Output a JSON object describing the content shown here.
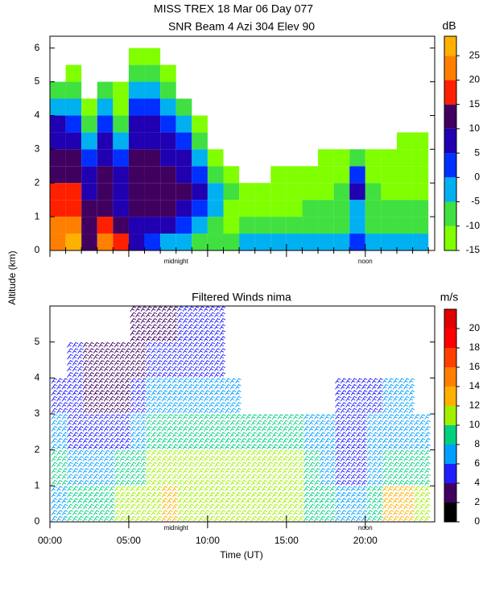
{
  "header": {
    "title": "MISS TREX  18 Mar 06 Day 077",
    "ylabel": "Altitude (km)"
  },
  "chart_data": [
    {
      "type": "heatmap",
      "title": "SNR Beam 4 Azi 304 Elev 90",
      "xlim": [
        0,
        24.4
      ],
      "ylim": [
        0,
        6.35
      ],
      "xticks": [
        0,
        1,
        2,
        3,
        4,
        5,
        6,
        7,
        8,
        9,
        10,
        11,
        12,
        13,
        14,
        15,
        16,
        17,
        18,
        19,
        20,
        21,
        22,
        23,
        24
      ],
      "yticks": [
        0,
        1,
        2,
        3,
        4,
        5,
        6
      ],
      "annotations": [
        {
          "text": "midnight",
          "x": 8
        },
        {
          "text": "noon",
          "x": 20
        }
      ],
      "xbins": [
        0,
        1,
        2,
        3,
        4,
        5,
        6,
        7,
        8,
        9,
        10,
        11,
        12,
        13,
        14,
        15,
        16,
        17,
        18,
        19,
        20,
        21,
        22,
        23,
        24
      ],
      "ybins": [
        0,
        0.5,
        1,
        1.5,
        2,
        2.5,
        3,
        3.5,
        4,
        4.5,
        5,
        5.5,
        6
      ],
      "values": [
        [
          20,
          22,
          15,
          15,
          12,
          10,
          8,
          5,
          -5,
          -10,
          null,
          null
        ],
        [
          25,
          20,
          18,
          15,
          12,
          10,
          5,
          0,
          -5,
          -10,
          -12,
          null
        ],
        [
          10,
          12,
          10,
          8,
          5,
          0,
          -5,
          -10,
          -12,
          null,
          null,
          null
        ],
        [
          20,
          15,
          12,
          12,
          10,
          8,
          5,
          0,
          -5,
          -10,
          null,
          null
        ],
        [
          15,
          10,
          5,
          5,
          5,
          0,
          -5,
          -10,
          -12,
          -12,
          null,
          null
        ],
        [
          5,
          8,
          10,
          10,
          10,
          10,
          8,
          5,
          0,
          -5,
          -10,
          -12
        ],
        [
          0,
          5,
          10,
          12,
          10,
          10,
          8,
          5,
          0,
          -5,
          -8,
          -12
        ],
        [
          -5,
          5,
          10,
          12,
          10,
          8,
          5,
          0,
          -5,
          -10,
          -12,
          null
        ],
        [
          -5,
          0,
          8,
          10,
          8,
          5,
          0,
          -5,
          -10,
          null,
          null,
          null
        ],
        [
          -10,
          -5,
          0,
          5,
          0,
          -5,
          -10,
          -12,
          null,
          null,
          null,
          null
        ],
        [
          -10,
          -10,
          -5,
          -5,
          -10,
          -12,
          null,
          null,
          null,
          null,
          null,
          null
        ],
        [
          -10,
          -12,
          -12,
          -10,
          -12,
          null,
          null,
          null,
          null,
          null,
          null,
          null
        ],
        [
          -5,
          -10,
          -12,
          -12,
          null,
          null,
          null,
          null,
          null,
          null,
          null,
          null
        ],
        [
          -5,
          -10,
          -12,
          -12,
          null,
          null,
          null,
          null,
          null,
          null,
          null,
          null
        ],
        [
          -5,
          -10,
          -12,
          -12,
          -12,
          null,
          null,
          null,
          null,
          null,
          null,
          null
        ],
        [
          -5,
          -10,
          -12,
          -12,
          -12,
          null,
          null,
          null,
          null,
          null,
          null,
          null
        ],
        [
          -5,
          -10,
          -10,
          -12,
          -12,
          null,
          null,
          null,
          null,
          null,
          null,
          null
        ],
        [
          -5,
          -10,
          -10,
          -12,
          -12,
          -12,
          null,
          null,
          null,
          null,
          null,
          null
        ],
        [
          -5,
          -8,
          -8,
          -10,
          -12,
          -12,
          null,
          null,
          null,
          null,
          null,
          null
        ],
        [
          0,
          -5,
          -5,
          5,
          0,
          -10,
          null,
          null,
          null,
          null,
          null,
          null
        ],
        [
          -5,
          -10,
          -10,
          -10,
          -12,
          -12,
          null,
          null,
          null,
          null,
          null,
          null
        ],
        [
          -5,
          -10,
          -10,
          -12,
          -12,
          -12,
          null,
          null,
          null,
          null,
          null,
          null
        ],
        [
          -5,
          -10,
          -10,
          -12,
          -12,
          -12,
          -12,
          null,
          null,
          null,
          null,
          null
        ],
        [
          -5,
          -10,
          -10,
          -12,
          -12,
          -12,
          -12,
          null,
          null,
          null,
          null,
          null
        ]
      ],
      "colorbar": {
        "label": "dB",
        "bins": [
          -15,
          -10,
          -5,
          0,
          5,
          10,
          15,
          20,
          25,
          29
        ],
        "colors": [
          "#80ff00",
          "#40e040",
          "#00b0f0",
          "#0030ff",
          "#2000b0",
          "#400060",
          "#ff2000",
          "#ff8000",
          "#ffb000"
        ],
        "ticks": [
          -15,
          -10,
          -5,
          0,
          5,
          10,
          15,
          20,
          25
        ]
      }
    },
    {
      "type": "barbs",
      "title": "Filtered Winds nima",
      "xlim": [
        0,
        24.4
      ],
      "ylim": [
        0,
        6
      ],
      "xticks": [
        {
          "value": 0,
          "label": "00:00"
        },
        {
          "value": 5,
          "label": "05:00"
        },
        {
          "value": 10,
          "label": "10:00"
        },
        {
          "value": 15,
          "label": "15:00"
        },
        {
          "value": 20,
          "label": "20:00"
        }
      ],
      "yticks": [
        0,
        1,
        2,
        3,
        4,
        5
      ],
      "xlabel": "Time (UT)",
      "annotations": [
        {
          "text": "midnight",
          "x": 8
        },
        {
          "text": "noon",
          "x": 20
        }
      ],
      "xbins": [
        0,
        1,
        2,
        3,
        4,
        5,
        6,
        7,
        8,
        9,
        10,
        11,
        12,
        13,
        14,
        15,
        16,
        17,
        18,
        19,
        20,
        21,
        22,
        23,
        24
      ],
      "ybins": [
        0,
        1,
        2,
        3,
        4,
        5,
        6
      ],
      "values": [
        [
          6,
          8,
          6,
          4,
          null,
          null
        ],
        [
          8,
          6,
          4,
          4,
          4,
          null
        ],
        [
          8,
          6,
          4,
          3,
          3,
          null
        ],
        [
          8,
          6,
          4,
          3,
          3,
          null
        ],
        [
          10,
          8,
          4,
          3,
          3,
          null
        ],
        [
          10,
          8,
          6,
          4,
          3,
          3
        ],
        [
          10,
          10,
          8,
          6,
          4,
          3
        ],
        [
          12,
          10,
          8,
          6,
          4,
          3
        ],
        [
          10,
          10,
          8,
          6,
          4,
          4
        ],
        [
          10,
          10,
          8,
          6,
          4,
          4
        ],
        [
          10,
          10,
          8,
          6,
          4,
          4
        ],
        [
          10,
          10,
          8,
          6,
          null,
          null
        ],
        [
          10,
          10,
          8,
          null,
          null,
          null
        ],
        [
          10,
          10,
          8,
          null,
          null,
          null
        ],
        [
          10,
          10,
          8,
          null,
          null,
          null
        ],
        [
          10,
          10,
          8,
          null,
          null,
          null
        ],
        [
          8,
          8,
          6,
          null,
          null,
          null
        ],
        [
          8,
          6,
          6,
          null,
          null,
          null
        ],
        [
          6,
          4,
          4,
          4,
          null,
          null
        ],
        [
          6,
          4,
          4,
          4,
          null,
          null
        ],
        [
          8,
          6,
          6,
          4,
          null,
          null
        ],
        [
          12,
          8,
          6,
          6,
          null,
          null
        ],
        [
          12,
          8,
          6,
          6,
          null,
          null
        ],
        [
          10,
          8,
          6,
          null,
          null,
          null
        ]
      ],
      "colorbar": {
        "label": "m/s",
        "bins": [
          0,
          2,
          4,
          6,
          8,
          10,
          12,
          14,
          16,
          18,
          20,
          22
        ],
        "colors": [
          "#000000",
          "#400060",
          "#2020ff",
          "#00a0ff",
          "#00d080",
          "#a0f000",
          "#ffb000",
          "#ff8000",
          "#ff4000",
          "#ff0000",
          "#e00000"
        ],
        "ticks": [
          0,
          2,
          4,
          6,
          8,
          10,
          12,
          14,
          16,
          18,
          20
        ]
      }
    }
  ]
}
